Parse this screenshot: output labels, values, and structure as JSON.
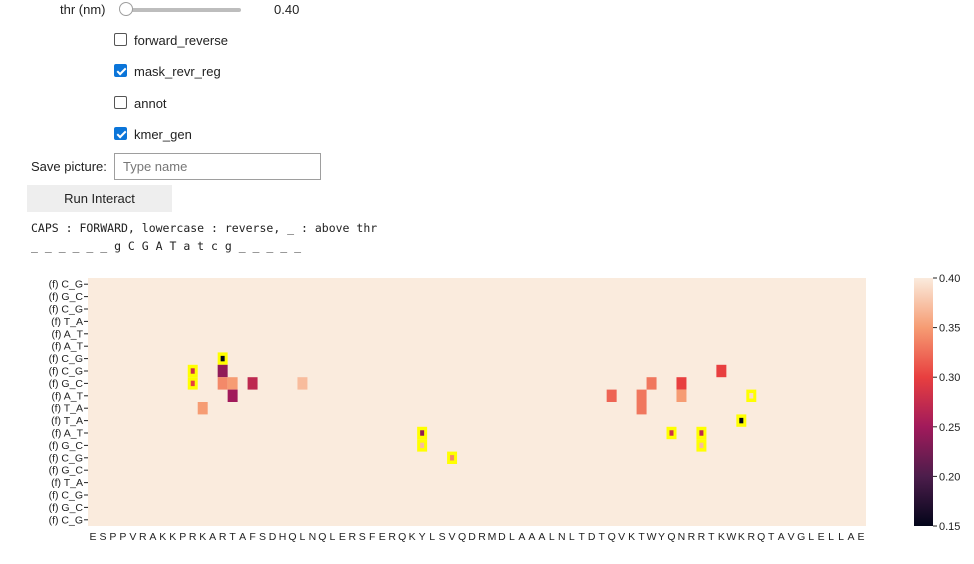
{
  "controls": {
    "thr_label": "thr (nm)",
    "thr_value": 0.4,
    "thr_value_text": "0.40",
    "checkboxes": [
      {
        "label": "forward_reverse",
        "checked": false
      },
      {
        "label": "mask_revr_reg",
        "checked": true
      },
      {
        "label": "annot",
        "checked": false
      },
      {
        "label": "kmer_gen",
        "checked": true
      }
    ],
    "save_label": "Save picture:",
    "save_placeholder": "Type name",
    "run_button": "Run Interact"
  },
  "output": {
    "legend_line": "CAPS : FORWARD, lowercase : reverse, _ : above thr",
    "sequence_line": "_ _ _ _ _ _ g C G A T a t c g _ _ _ _ _"
  },
  "chart_data": {
    "type": "heatmap",
    "title": "",
    "xlabel": "",
    "ylabel": "",
    "x_tick_labels": [
      "E",
      "S",
      "P",
      "P",
      "V",
      "R",
      "A",
      "K",
      "K",
      "P",
      "R",
      "K",
      "A",
      "R",
      "T",
      "A",
      "F",
      "S",
      "D",
      "H",
      "Q",
      "L",
      "N",
      "Q",
      "L",
      "E",
      "R",
      "S",
      "F",
      "E",
      "R",
      "Q",
      "K",
      "Y",
      "L",
      "S",
      "V",
      "Q",
      "D",
      "R",
      "M",
      "D",
      "L",
      "A",
      "A",
      "A",
      "L",
      "N",
      "L",
      "T",
      "D",
      "T",
      "Q",
      "V",
      "K",
      "T",
      "W",
      "Y",
      "Q",
      "N",
      "R",
      "R",
      "T",
      "K",
      "W",
      "K",
      "R",
      "Q",
      "T",
      "A",
      "V",
      "G",
      "L",
      "E",
      "L",
      "L",
      "A",
      "E"
    ],
    "y_tick_labels": [
      "(f) C_G",
      "(f) G_C",
      "(f) C_G",
      "(f) T_A",
      "(f) A_T",
      "(f) A_T",
      "(f) C_G",
      "(f) C_G",
      "(f) G_C",
      "(f) A_T",
      "(f) T_A",
      "(f) T_A",
      "(f) A_T",
      "(f) G_C",
      "(f) C_G",
      "(f) G_C",
      "(f) T_A",
      "(f) C_G",
      "(f) G_C",
      "(f) C_G"
    ],
    "background_value": 0.4,
    "cells": [
      {
        "x": 10,
        "y": 7,
        "v": 0.28,
        "highlight": true
      },
      {
        "x": 10,
        "y": 8,
        "v": 0.3,
        "highlight": true
      },
      {
        "x": 11,
        "y": 10,
        "v": 0.35
      },
      {
        "x": 13,
        "y": 6,
        "v": 0.15,
        "highlight": true
      },
      {
        "x": 13,
        "y": 7,
        "v": 0.24
      },
      {
        "x": 13,
        "y": 8,
        "v": 0.34
      },
      {
        "x": 14,
        "y": 8,
        "v": 0.35
      },
      {
        "x": 14,
        "y": 9,
        "v": 0.25
      },
      {
        "x": 16,
        "y": 8,
        "v": 0.27
      },
      {
        "x": 21,
        "y": 8,
        "v": 0.37
      },
      {
        "x": 33,
        "y": 12,
        "v": 0.24,
        "highlight": true
      },
      {
        "x": 33,
        "y": 13,
        "v": 0.37,
        "highlight": true
      },
      {
        "x": 36,
        "y": 14,
        "v": 0.34,
        "highlight": true
      },
      {
        "x": 52,
        "y": 9,
        "v": 0.32
      },
      {
        "x": 55,
        "y": 9,
        "v": 0.33
      },
      {
        "x": 55,
        "y": 10,
        "v": 0.33
      },
      {
        "x": 56,
        "y": 8,
        "v": 0.33
      },
      {
        "x": 58,
        "y": 12,
        "v": 0.28,
        "highlight": true
      },
      {
        "x": 59,
        "y": 8,
        "v": 0.3
      },
      {
        "x": 59,
        "y": 9,
        "v": 0.35
      },
      {
        "x": 61,
        "y": 12,
        "v": 0.27,
        "highlight": true
      },
      {
        "x": 61,
        "y": 13,
        "v": 0.37,
        "highlight": true
      },
      {
        "x": 63,
        "y": 7,
        "v": 0.3
      },
      {
        "x": 65,
        "y": 11,
        "v": 0.15,
        "highlight": true
      },
      {
        "x": 66,
        "y": 9,
        "v": 0.39,
        "highlight": true
      }
    ],
    "colorbar": {
      "min": 0.15,
      "max": 0.4,
      "ticks": [
        "0.40",
        "0.35",
        "0.30",
        "0.25",
        "0.20",
        "0.15"
      ]
    },
    "colors": {
      "highlight": "#ffff00",
      "stops": [
        "#03051a",
        "#4c1d4b",
        "#a11a5b",
        "#e83f3f",
        "#f69c73",
        "#faebdd"
      ]
    }
  }
}
